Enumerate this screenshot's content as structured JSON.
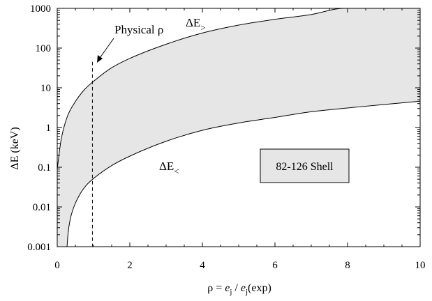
{
  "chart_data": {
    "type": "area",
    "xlabel": {
      "prefix": "ρ = ",
      "e1": "e",
      "sub1": "j",
      "slash": " / ",
      "e2": "e",
      "sub2": "j",
      "suffix": "(exp)"
    },
    "ylabel": {
      "delta": "Δ",
      "rest": "E (keV)"
    },
    "xlim": [
      0,
      10
    ],
    "ylim": [
      0.001,
      1000
    ],
    "yscale": "log",
    "grid": false,
    "x_ticks": [
      "0",
      "2",
      "4",
      "6",
      "8",
      "10"
    ],
    "y_ticks": [
      "0.001",
      "0.01",
      "0.1",
      "1",
      "10",
      "100",
      "1000"
    ],
    "series": [
      {
        "name": "ΔE>",
        "label_base": "ΔE",
        "label_sub": ">",
        "x": [
          0.0,
          0.1,
          0.25,
          0.5,
          0.75,
          1.0,
          1.5,
          2.0,
          3.0,
          4.0,
          5.0,
          6.0,
          7.0,
          7.9,
          10.0
        ],
        "y": [
          0.09,
          0.45,
          1.6,
          4.5,
          9.0,
          14.5,
          32,
          55,
          125,
          240,
          380,
          530,
          700,
          1000,
          1000
        ]
      },
      {
        "name": "ΔE<",
        "label_base": "ΔE",
        "label_sub": "<",
        "x": [
          0.27,
          0.3,
          0.35,
          0.45,
          0.6,
          0.8,
          1.0,
          1.5,
          2.0,
          3.0,
          4.0,
          5.0,
          6.0,
          7.0,
          8.0,
          9.0,
          10.0
        ],
        "y": [
          0.001,
          0.0022,
          0.0045,
          0.0095,
          0.019,
          0.035,
          0.052,
          0.11,
          0.19,
          0.45,
          0.85,
          1.3,
          1.8,
          2.5,
          3.1,
          3.8,
          4.6
        ]
      }
    ],
    "fill_between": {
      "upper": "ΔE>",
      "lower": "ΔE<",
      "color": "#e6e6e6"
    },
    "annotations": {
      "physical_label": "Physical ρ",
      "physical_x": 0.97,
      "physical_line_top_y": 45,
      "shell_box": "82-126 Shell"
    }
  }
}
